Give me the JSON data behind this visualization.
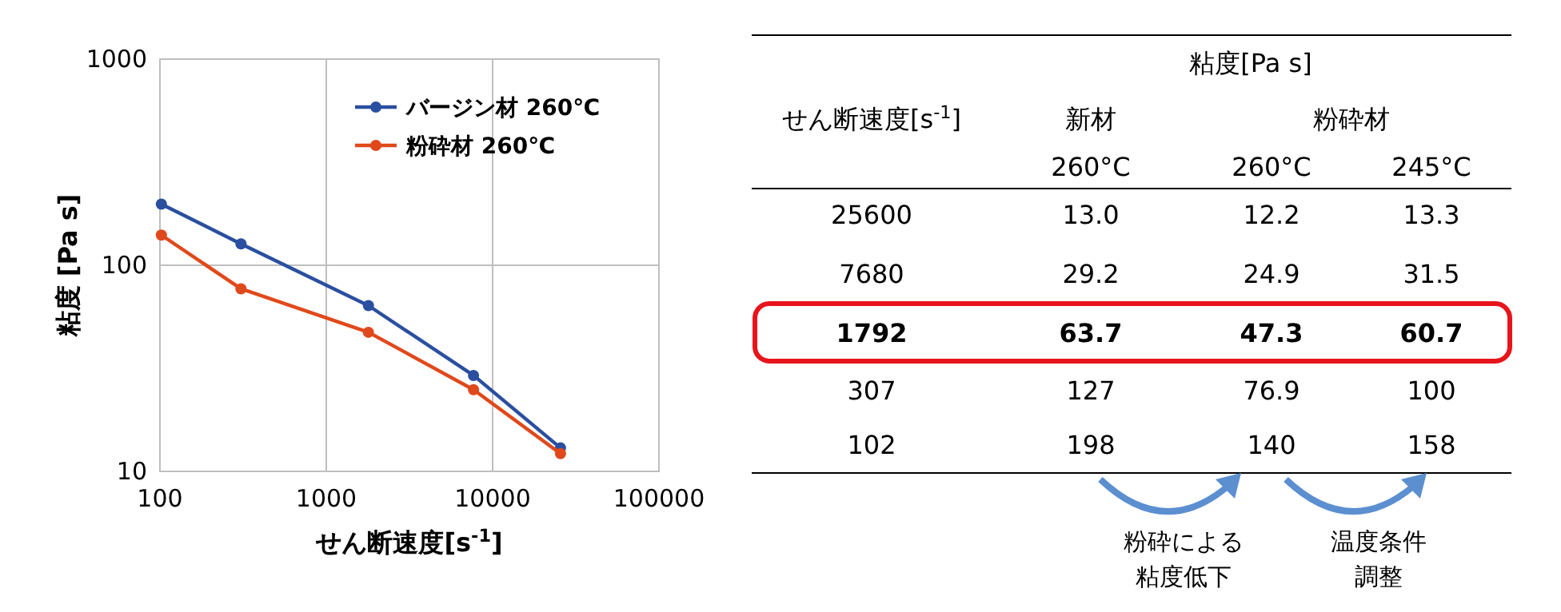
{
  "chart_data": [
    {
      "type": "line",
      "xlabel": "せん断速度[s$^{-1}$]",
      "ylabel": "粘度 [Pa s]",
      "log": "xy",
      "xlim": [
        100,
        100000
      ],
      "xticks": [
        100,
        1000,
        10000,
        100000
      ],
      "ylim": [
        10,
        1000
      ],
      "yticks": [
        10,
        100,
        1000
      ],
      "grid": true,
      "legend": "top right",
      "marker": "circle",
      "x": [
        102,
        307,
        1792,
        7680,
        25600
      ],
      "series": [
        {
          "name": "バージン材 260℃",
          "color": "#2a4fa0",
          "values": [
            198,
            127,
            63.7,
            29.2,
            13.0
          ]
        },
        {
          "name": "粉砕材 260℃",
          "color": "#e0491b",
          "values": [
            140,
            76.9,
            47.3,
            24.9,
            12.2
          ]
        }
      ]
    },
    {
      "type": "other",
      "categories": [
        "25600",
        "7680",
        "1792",
        "307",
        "102"
      ],
      "data_labels": true,
      "annotations": [
        "粘度[Pa s]",
        "せん断速度[s$^{-1}$]",
        "新材",
        "粉砕材",
        "260°C",
        "260°C",
        "245°C",
        "粉砕による粘度低下",
        "温度条件調整"
      ],
      "series": [
        {
          "values": [
            13.0,
            29.2,
            63.7,
            127,
            198
          ],
          "value_labels": [
            "13.0",
            "29.2",
            "63.7",
            "127",
            "198"
          ]
        },
        {
          "values": [
            12.2,
            24.9,
            47.3,
            76.9,
            140
          ]
        },
        {
          "values": [
            13.3,
            31.5,
            60.7,
            100,
            158
          ]
        }
      ]
    }
  ]
}
